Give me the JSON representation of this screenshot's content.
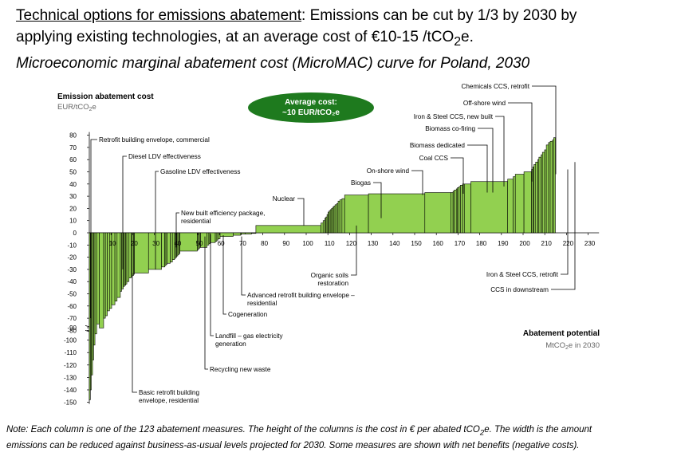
{
  "title": {
    "line1_underlined": "Technical options for emissions abatement",
    "line1_rest": ": Emissions can be cut by 1/3 by 2030 by",
    "line2_pre": "applying existing technologies, at an average cost of €10-15 /tCO",
    "line2_sub": "2",
    "line2_post": "e.",
    "line3": "Microeconomic marginal abatement cost (MicroMAC) curve for Poland, 2030"
  },
  "note": {
    "line1_pre": "Note: Each column is one of the 123 abatement measures. The height of the columns is the cost in € per abated tCO",
    "line1_sub": "2",
    "line1_post": "e. The width is the amount",
    "line2": "emissions can be reduced against business-as-usual levels projected for 2030. Some measures are shown with net benefits (negative costs)."
  },
  "chart_data": {
    "type": "bar",
    "variable_width": true,
    "ylabel": "Emission abatement cost",
    "yunit_pre": "EUR/tCO",
    "yunit_sub": "2",
    "yunit_post": "e",
    "xlabel": "Abatement potential",
    "xunit_pre": "MtCO",
    "xunit_sub": "2",
    "xunit_post": "e in 2030",
    "xlim": [
      0,
      235
    ],
    "yticks_upper": [
      80,
      70,
      60,
      50,
      40,
      30,
      20,
      10,
      0,
      -10,
      -20,
      -30,
      -40,
      -50,
      -60,
      -70,
      -80
    ],
    "yticks_lower": [
      -90,
      -100,
      -110,
      -120,
      -130,
      -140,
      -150
    ],
    "xticks": [
      10,
      20,
      30,
      40,
      50,
      60,
      70,
      80,
      90,
      100,
      110,
      120,
      130,
      140,
      150,
      160,
      170,
      180,
      190,
      200,
      210,
      220,
      230
    ],
    "callout": {
      "line1": "Average cost:",
      "line2": "~10 EUR/tCO₂e"
    },
    "bar_color": "#92d050",
    "bars": [
      [
        0.5,
        -148
      ],
      [
        0.4,
        -140
      ],
      [
        0.6,
        -128
      ],
      [
        0.5,
        -116
      ],
      [
        0.6,
        -104
      ],
      [
        0.8,
        -95
      ],
      [
        1.2,
        -87
      ],
      [
        2.0,
        -78
      ],
      [
        0.8,
        -70
      ],
      [
        0.9,
        -68
      ],
      [
        1.0,
        -64
      ],
      [
        1.0,
        -62
      ],
      [
        1.5,
        -59
      ],
      [
        1.0,
        -56
      ],
      [
        1.5,
        -53
      ],
      [
        0.6,
        -48
      ],
      [
        0.8,
        -46
      ],
      [
        0.5,
        -44
      ],
      [
        0.6,
        -43
      ],
      [
        0.5,
        -42
      ],
      [
        1.0,
        -40
      ],
      [
        1.0,
        -37
      ],
      [
        0.5,
        -36
      ],
      [
        0.6,
        -35
      ],
      [
        0.4,
        -34
      ],
      [
        6.5,
        -33
      ],
      [
        6.0,
        -30
      ],
      [
        1.5,
        -28
      ],
      [
        0.5,
        -27
      ],
      [
        0.5,
        -26
      ],
      [
        1.5,
        -25
      ],
      [
        1.0,
        -24
      ],
      [
        1.0,
        -22
      ],
      [
        0.5,
        -21
      ],
      [
        0.5,
        -20
      ],
      [
        0.5,
        -19
      ],
      [
        0.5,
        -18
      ],
      [
        0.5,
        -17
      ],
      [
        8.0,
        -15
      ],
      [
        0.5,
        -14
      ],
      [
        0.5,
        -13
      ],
      [
        0.5,
        -12
      ],
      [
        3.0,
        -12
      ],
      [
        0.8,
        -10
      ],
      [
        0.5,
        -9
      ],
      [
        2.5,
        -8
      ],
      [
        0.7,
        -7
      ],
      [
        0.5,
        -6
      ],
      [
        1.0,
        -5
      ],
      [
        6.0,
        -3
      ],
      [
        3.5,
        -2
      ],
      [
        2.0,
        -1
      ],
      [
        3.0,
        -1
      ],
      [
        2.0,
        -0.5
      ],
      [
        30.0,
        6
      ],
      [
        1.0,
        8
      ],
      [
        0.8,
        10
      ],
      [
        0.5,
        12
      ],
      [
        0.5,
        13
      ],
      [
        0.5,
        15
      ],
      [
        0.5,
        17
      ],
      [
        0.5,
        18
      ],
      [
        0.6,
        19
      ],
      [
        0.5,
        20
      ],
      [
        0.6,
        21
      ],
      [
        0.5,
        22
      ],
      [
        0.8,
        23
      ],
      [
        0.6,
        24
      ],
      [
        0.8,
        26
      ],
      [
        1.0,
        27
      ],
      [
        1.2,
        28
      ],
      [
        11.0,
        31
      ],
      [
        26.0,
        32
      ],
      [
        12.0,
        33
      ],
      [
        1.0,
        33
      ],
      [
        0.5,
        34
      ],
      [
        1.0,
        35
      ],
      [
        0.5,
        36
      ],
      [
        0.8,
        37
      ],
      [
        0.6,
        38
      ],
      [
        1.0,
        39
      ],
      [
        0.8,
        40
      ],
      [
        3.0,
        40
      ],
      [
        17.0,
        42
      ],
      [
        2.5,
        44
      ],
      [
        1.0,
        46
      ],
      [
        4.0,
        48
      ],
      [
        3.5,
        50
      ],
      [
        0.6,
        52
      ],
      [
        0.5,
        54
      ],
      [
        0.8,
        56
      ],
      [
        1.0,
        58
      ],
      [
        0.5,
        60
      ],
      [
        1.0,
        62
      ],
      [
        0.6,
        64
      ],
      [
        1.0,
        66
      ],
      [
        0.8,
        68
      ],
      [
        1.0,
        72
      ],
      [
        0.8,
        74
      ],
      [
        1.0,
        75
      ],
      [
        0.6,
        76
      ],
      [
        0.8,
        78
      ]
    ],
    "annotations": [
      "Retrofit building envelope, commercial",
      "Diesel LDV effectiveness",
      "Gasoline LDV effectiveness",
      "New built efficiency package,",
      "residential",
      "Nuclear",
      "Biogas",
      "On-shore wind",
      "Coal CCS",
      "Biomass dedicated",
      "Biomass co-firing",
      "Iron & Steel CCS, new built",
      "Off-shore wind",
      "Chemicals CCS, retrofit",
      "Organic soils",
      "restoration",
      "Advanced retrofit building envelope –",
      "residential",
      "Cogeneration",
      "Landfill – gas electricity",
      "generation",
      "Recycling new waste",
      "Basic retrofit building",
      "envelope, residential",
      "Iron & Steel CCS, retrofit",
      "CCS in downstream"
    ]
  }
}
